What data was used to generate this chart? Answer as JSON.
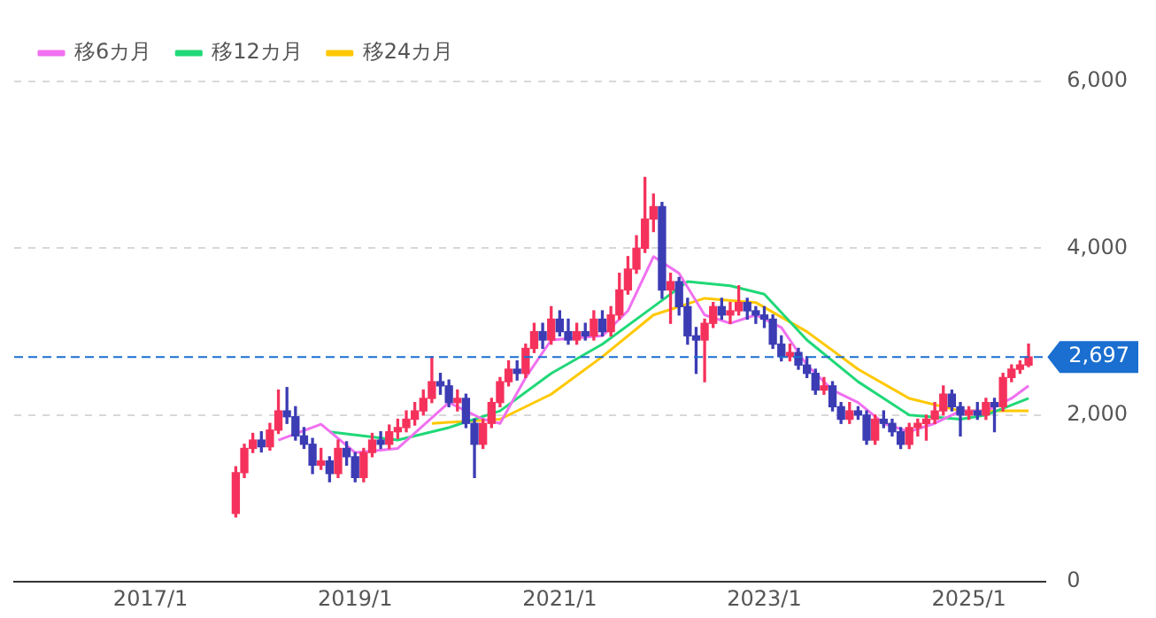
{
  "chart_data": {
    "type": "candlestick",
    "x": [
      "2017-11",
      "2017-12",
      "2018-01",
      "2018-02",
      "2018-03",
      "2018-04",
      "2018-05",
      "2018-06",
      "2018-07",
      "2018-08",
      "2018-09",
      "2018-10",
      "2018-11",
      "2018-12",
      "2019-01",
      "2019-02",
      "2019-03",
      "2019-04",
      "2019-05",
      "2019-06",
      "2019-07",
      "2019-08",
      "2019-09",
      "2019-10",
      "2019-11",
      "2019-12",
      "2020-01",
      "2020-02",
      "2020-03",
      "2020-04",
      "2020-05",
      "2020-06",
      "2020-07",
      "2020-08",
      "2020-09",
      "2020-10",
      "2020-11",
      "2020-12",
      "2021-01",
      "2021-02",
      "2021-03",
      "2021-04",
      "2021-05",
      "2021-06",
      "2021-07",
      "2021-08",
      "2021-09",
      "2021-10",
      "2021-11",
      "2021-12",
      "2022-01",
      "2022-02",
      "2022-03",
      "2022-04",
      "2022-05",
      "2022-06",
      "2022-07",
      "2022-08",
      "2022-09",
      "2022-10",
      "2022-11",
      "2022-12",
      "2023-01",
      "2023-02",
      "2023-03",
      "2023-04",
      "2023-05",
      "2023-06",
      "2023-07",
      "2023-08",
      "2023-09",
      "2023-10",
      "2023-11",
      "2023-12",
      "2024-01",
      "2024-02",
      "2024-03",
      "2024-04",
      "2024-05",
      "2024-06",
      "2024-07",
      "2024-08",
      "2024-09",
      "2024-10",
      "2024-11",
      "2024-12",
      "2025-01",
      "2025-02",
      "2025-03",
      "2025-04",
      "2025-05",
      "2025-06",
      "2025-07",
      "2025-08"
    ],
    "ohlc": [
      [
        820,
        1380,
        780,
        1310
      ],
      [
        1310,
        1650,
        1250,
        1600
      ],
      [
        1600,
        1780,
        1550,
        1700
      ],
      [
        1700,
        1800,
        1560,
        1620
      ],
      [
        1620,
        1900,
        1580,
        1820
      ],
      [
        1820,
        2300,
        1780,
        2050
      ],
      [
        2050,
        2330,
        1900,
        1980
      ],
      [
        1980,
        2100,
        1700,
        1750
      ],
      [
        1750,
        1850,
        1600,
        1650
      ],
      [
        1650,
        1720,
        1300,
        1400
      ],
      [
        1400,
        1600,
        1350,
        1450
      ],
      [
        1450,
        1500,
        1200,
        1300
      ],
      [
        1300,
        1700,
        1250,
        1600
      ],
      [
        1600,
        1680,
        1400,
        1500
      ],
      [
        1500,
        1550,
        1200,
        1250
      ],
      [
        1250,
        1600,
        1200,
        1550
      ],
      [
        1550,
        1780,
        1500,
        1700
      ],
      [
        1700,
        1800,
        1600,
        1650
      ],
      [
        1650,
        1880,
        1600,
        1800
      ],
      [
        1800,
        1950,
        1720,
        1850
      ],
      [
        1850,
        2050,
        1800,
        1950
      ],
      [
        1950,
        2150,
        1880,
        2050
      ],
      [
        2050,
        2300,
        2000,
        2200
      ],
      [
        2200,
        2700,
        2150,
        2400
      ],
      [
        2400,
        2500,
        2250,
        2350
      ],
      [
        2350,
        2420,
        2100,
        2150
      ],
      [
        2150,
        2300,
        2050,
        2200
      ],
      [
        2200,
        2250,
        1850,
        1900
      ],
      [
        1900,
        1950,
        1250,
        1650
      ],
      [
        1650,
        1950,
        1600,
        1900
      ],
      [
        1900,
        2200,
        1850,
        2150
      ],
      [
        2150,
        2450,
        2100,
        2400
      ],
      [
        2400,
        2650,
        2350,
        2550
      ],
      [
        2550,
        2650,
        2420,
        2500
      ],
      [
        2500,
        2850,
        2450,
        2800
      ],
      [
        2800,
        3100,
        2750,
        3000
      ],
      [
        3000,
        3100,
        2800,
        2900
      ],
      [
        2900,
        3300,
        2850,
        3150
      ],
      [
        3150,
        3250,
        2950,
        3000
      ],
      [
        3000,
        3150,
        2850,
        2900
      ],
      [
        2900,
        3100,
        2850,
        3000
      ],
      [
        3000,
        3100,
        2900,
        2950
      ],
      [
        2950,
        3250,
        2900,
        3150
      ],
      [
        3150,
        3250,
        2950,
        3000
      ],
      [
        3000,
        3300,
        2950,
        3200
      ],
      [
        3200,
        3700,
        3150,
        3500
      ],
      [
        3500,
        3900,
        3450,
        3750
      ],
      [
        3750,
        4150,
        3700,
        4000
      ],
      [
        4000,
        4850,
        3950,
        4350
      ],
      [
        4350,
        4650,
        4200,
        4500
      ],
      [
        4500,
        4550,
        3400,
        3500
      ],
      [
        3500,
        3700,
        3100,
        3600
      ],
      [
        3600,
        3650,
        3200,
        3300
      ],
      [
        3300,
        3400,
        2850,
        2950
      ],
      [
        2950,
        3050,
        2500,
        2900
      ],
      [
        2900,
        3150,
        2400,
        3100
      ],
      [
        3100,
        3350,
        3050,
        3300
      ],
      [
        3300,
        3400,
        3150,
        3200
      ],
      [
        3200,
        3350,
        3100,
        3250
      ],
      [
        3250,
        3550,
        3200,
        3350
      ],
      [
        3350,
        3400,
        3150,
        3250
      ],
      [
        3250,
        3300,
        3100,
        3200
      ],
      [
        3200,
        3300,
        3050,
        3150
      ],
      [
        3150,
        3200,
        2800,
        2850
      ],
      [
        2850,
        2950,
        2650,
        2700
      ],
      [
        2700,
        2850,
        2650,
        2750
      ],
      [
        2750,
        2800,
        2550,
        2600
      ],
      [
        2600,
        2700,
        2450,
        2500
      ],
      [
        2500,
        2550,
        2250,
        2300
      ],
      [
        2300,
        2450,
        2250,
        2350
      ],
      [
        2350,
        2400,
        2050,
        2100
      ],
      [
        2100,
        2150,
        1900,
        1950
      ],
      [
        1950,
        2150,
        1900,
        2050
      ],
      [
        2050,
        2100,
        1950,
        2000
      ],
      [
        2000,
        2050,
        1650,
        1700
      ],
      [
        1700,
        2000,
        1650,
        1950
      ],
      [
        1950,
        2050,
        1850,
        1900
      ],
      [
        1900,
        1950,
        1750,
        1800
      ],
      [
        1800,
        1850,
        1600,
        1650
      ],
      [
        1650,
        1900,
        1600,
        1850
      ],
      [
        1850,
        1950,
        1750,
        1900
      ],
      [
        1900,
        2000,
        1700,
        1950
      ],
      [
        1950,
        2150,
        1900,
        2050
      ],
      [
        2050,
        2350,
        2000,
        2250
      ],
      [
        2250,
        2300,
        2050,
        2100
      ],
      [
        2100,
        2150,
        1750,
        2000
      ],
      [
        2000,
        2100,
        1950,
        2050
      ],
      [
        2050,
        2150,
        1950,
        2000
      ],
      [
        2000,
        2200,
        1950,
        2150
      ],
      [
        2150,
        2200,
        1800,
        2100
      ],
      [
        2100,
        2500,
        2050,
        2450
      ],
      [
        2450,
        2600,
        2400,
        2550
      ],
      [
        2550,
        2650,
        2500,
        2600
      ],
      [
        2600,
        2850,
        2580,
        2697
      ]
    ],
    "colors": [
      "#f5325c",
      "#f5325c",
      "#f5325c",
      "#3c3cb4",
      "#f5325c",
      "#f5325c",
      "#3c3cb4",
      "#3c3cb4",
      "#3c3cb4",
      "#3c3cb4",
      "#f5325c",
      "#3c3cb4",
      "#f5325c",
      "#3c3cb4",
      "#3c3cb4",
      "#f5325c",
      "#f5325c",
      "#3c3cb4",
      "#f5325c",
      "#f5325c",
      "#f5325c",
      "#f5325c",
      "#f5325c",
      "#f5325c",
      "#3c3cb4",
      "#3c3cb4",
      "#f5325c",
      "#3c3cb4",
      "#3c3cb4",
      "#f5325c",
      "#f5325c",
      "#f5325c",
      "#f5325c",
      "#3c3cb4",
      "#f5325c",
      "#f5325c",
      "#3c3cb4",
      "#f5325c",
      "#3c3cb4",
      "#3c3cb4",
      "#f5325c",
      "#3c3cb4",
      "#f5325c",
      "#3c3cb4",
      "#f5325c",
      "#f5325c",
      "#f5325c",
      "#f5325c",
      "#f5325c",
      "#f5325c",
      "#3c3cb4",
      "#f5325c",
      "#3c3cb4",
      "#3c3cb4",
      "#3c3cb4",
      "#f5325c",
      "#f5325c",
      "#3c3cb4",
      "#f5325c",
      "#f5325c",
      "#3c3cb4",
      "#3c3cb4",
      "#3c3cb4",
      "#3c3cb4",
      "#3c3cb4",
      "#f5325c",
      "#3c3cb4",
      "#3c3cb4",
      "#3c3cb4",
      "#f5325c",
      "#3c3cb4",
      "#3c3cb4",
      "#f5325c",
      "#3c3cb4",
      "#3c3cb4",
      "#f5325c",
      "#3c3cb4",
      "#3c3cb4",
      "#3c3cb4",
      "#f5325c",
      "#f5325c",
      "#f5325c",
      "#f5325c",
      "#f5325c",
      "#3c3cb4",
      "#3c3cb4",
      "#f5325c",
      "#3c3cb4",
      "#f5325c",
      "#3c3cb4",
      "#f5325c",
      "#f5325c",
      "#f5325c",
      "#f5325c"
    ],
    "series": [
      {
        "name": "移6カ月",
        "type": "line",
        "color": "#f070f0",
        "x": [
          "2018-04",
          "2018-09",
          "2019-01",
          "2019-06",
          "2019-12",
          "2020-04",
          "2020-06",
          "2020-09",
          "2020-12",
          "2021-06",
          "2021-09",
          "2021-12",
          "2022-03",
          "2022-06",
          "2022-09",
          "2022-12",
          "2023-03",
          "2023-06",
          "2023-09",
          "2023-12",
          "2024-03",
          "2024-06",
          "2024-09",
          "2024-12",
          "2025-03",
          "2025-06",
          "2025-08"
        ],
        "values": [
          1700,
          1890,
          1550,
          1600,
          2150,
          1950,
          1900,
          2450,
          2900,
          2950,
          3250,
          3900,
          3700,
          3200,
          3100,
          3200,
          3050,
          2600,
          2300,
          2150,
          1900,
          1800,
          1900,
          2050,
          2050,
          2200,
          2350
        ]
      },
      {
        "name": "移12カ月",
        "type": "line",
        "color": "#20d878",
        "x": [
          "2018-10",
          "2019-06",
          "2019-12",
          "2020-06",
          "2020-12",
          "2021-06",
          "2021-12",
          "2022-04",
          "2022-09",
          "2023-01",
          "2023-06",
          "2023-12",
          "2024-06",
          "2024-12",
          "2025-03",
          "2025-08"
        ],
        "values": [
          1800,
          1700,
          1850,
          2050,
          2500,
          2850,
          3300,
          3600,
          3550,
          3450,
          2900,
          2400,
          2000,
          1950,
          2000,
          2200
        ]
      },
      {
        "name": "移24カ月",
        "type": "line",
        "color": "#ffc800",
        "x": [
          "2019-10",
          "2020-06",
          "2020-12",
          "2021-06",
          "2021-12",
          "2022-06",
          "2022-12",
          "2023-06",
          "2023-12",
          "2024-06",
          "2024-12",
          "2025-08"
        ],
        "values": [
          1900,
          1950,
          2250,
          2700,
          3200,
          3400,
          3350,
          3000,
          2550,
          2200,
          2050,
          2050
        ]
      }
    ],
    "xlim": [
      "2015-09",
      "2025-10"
    ],
    "xticks": [
      {
        "value": "2017-01",
        "label": "2017/1"
      },
      {
        "value": "2019-01",
        "label": "2019/1"
      },
      {
        "value": "2021-01",
        "label": "2021/1"
      },
      {
        "value": "2023-01",
        "label": "2023/1"
      },
      {
        "value": "2025-01",
        "label": "2025/1"
      }
    ],
    "ylim": [
      0,
      6000
    ],
    "yticks": [
      0,
      {
        "value": 2000,
        "label": "2,000"
      },
      {
        "value": 4000,
        "label": "4,000"
      },
      {
        "value": 6000,
        "label": "6,000"
      }
    ],
    "ref_lines": [
      {
        "axis": "y",
        "value": 2697,
        "label": "2,697",
        "color": "#1a6fd0",
        "line_style": "dashed"
      }
    ],
    "grid": "y",
    "legend": "top left",
    "marker": "none"
  }
}
